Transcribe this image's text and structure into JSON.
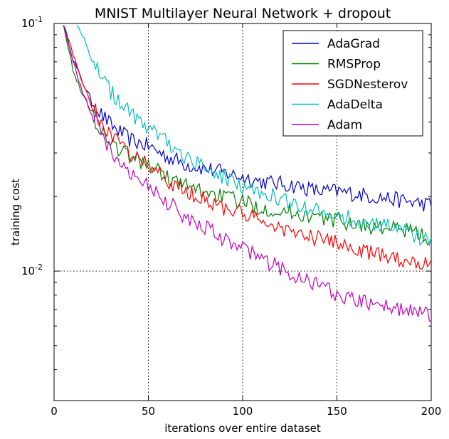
{
  "chart_data": {
    "type": "line",
    "title": "MNIST Multilayer Neural Network + dropout",
    "xlabel": "iterations over entire dataset",
    "ylabel": "training cost",
    "xlim": [
      0,
      200
    ],
    "ylim": [
      0.003,
      0.1
    ],
    "yscale": "log",
    "xticks": [
      0,
      50,
      100,
      150,
      200
    ],
    "yticks": [
      {
        "value": 0.01,
        "base": "10",
        "exp": "-2"
      },
      {
        "value": 0.1,
        "base": "10",
        "exp": "-1"
      }
    ],
    "grid": "dotted, at x = 50, 100, 150 and y = 10^-2",
    "legend_position": "upper-right",
    "series": [
      {
        "name": "AdaGrad",
        "color": "#0000cc",
        "points": [
          [
            5,
            0.1
          ],
          [
            10,
            0.072
          ],
          [
            15,
            0.058
          ],
          [
            20,
            0.049
          ],
          [
            25,
            0.043
          ],
          [
            30,
            0.039
          ],
          [
            40,
            0.034
          ],
          [
            50,
            0.032
          ],
          [
            60,
            0.029
          ],
          [
            70,
            0.027
          ],
          [
            80,
            0.026
          ],
          [
            90,
            0.025
          ],
          [
            100,
            0.024
          ],
          [
            110,
            0.023
          ],
          [
            120,
            0.0225
          ],
          [
            130,
            0.022
          ],
          [
            140,
            0.021
          ],
          [
            150,
            0.021
          ],
          [
            160,
            0.0205
          ],
          [
            170,
            0.02
          ],
          [
            180,
            0.0195
          ],
          [
            190,
            0.019
          ],
          [
            200,
            0.0185
          ]
        ]
      },
      {
        "name": "RMSProp",
        "color": "#008000",
        "points": [
          [
            5,
            0.1
          ],
          [
            10,
            0.065
          ],
          [
            15,
            0.052
          ],
          [
            20,
            0.043
          ],
          [
            25,
            0.037
          ],
          [
            30,
            0.033
          ],
          [
            40,
            0.029
          ],
          [
            50,
            0.027
          ],
          [
            60,
            0.024
          ],
          [
            70,
            0.022
          ],
          [
            80,
            0.021
          ],
          [
            90,
            0.02
          ],
          [
            100,
            0.019
          ],
          [
            110,
            0.018
          ],
          [
            120,
            0.0175
          ],
          [
            130,
            0.017
          ],
          [
            140,
            0.0165
          ],
          [
            150,
            0.016
          ],
          [
            160,
            0.0155
          ],
          [
            170,
            0.015
          ],
          [
            180,
            0.0148
          ],
          [
            190,
            0.0145
          ],
          [
            200,
            0.0135
          ]
        ]
      },
      {
        "name": "SGDNesterov",
        "color": "#ff0000",
        "points": [
          [
            5,
            0.1
          ],
          [
            10,
            0.075
          ],
          [
            15,
            0.058
          ],
          [
            20,
            0.047
          ],
          [
            25,
            0.04
          ],
          [
            30,
            0.035
          ],
          [
            40,
            0.03
          ],
          [
            50,
            0.027
          ],
          [
            60,
            0.023
          ],
          [
            70,
            0.021
          ],
          [
            80,
            0.0195
          ],
          [
            90,
            0.018
          ],
          [
            100,
            0.017
          ],
          [
            110,
            0.0158
          ],
          [
            120,
            0.015
          ],
          [
            130,
            0.014
          ],
          [
            140,
            0.0135
          ],
          [
            150,
            0.013
          ],
          [
            160,
            0.0122
          ],
          [
            170,
            0.0117
          ],
          [
            180,
            0.0113
          ],
          [
            190,
            0.011
          ],
          [
            200,
            0.0107
          ]
        ]
      },
      {
        "name": "AdaDelta",
        "color": "#00bfbf",
        "points": [
          [
            12,
            0.1
          ],
          [
            15,
            0.09
          ],
          [
            20,
            0.072
          ],
          [
            25,
            0.061
          ],
          [
            30,
            0.053
          ],
          [
            40,
            0.044
          ],
          [
            50,
            0.038
          ],
          [
            60,
            0.033
          ],
          [
            70,
            0.029
          ],
          [
            80,
            0.026
          ],
          [
            90,
            0.024
          ],
          [
            100,
            0.022
          ],
          [
            110,
            0.021
          ],
          [
            120,
            0.0195
          ],
          [
            130,
            0.0185
          ],
          [
            140,
            0.0175
          ],
          [
            150,
            0.017
          ],
          [
            160,
            0.016
          ],
          [
            170,
            0.0155
          ],
          [
            180,
            0.015
          ],
          [
            190,
            0.014
          ],
          [
            200,
            0.013
          ]
        ]
      },
      {
        "name": "Adam",
        "color": "#bf00bf",
        "points": [
          [
            5,
            0.1
          ],
          [
            10,
            0.07
          ],
          [
            15,
            0.053
          ],
          [
            20,
            0.043
          ],
          [
            25,
            0.036
          ],
          [
            30,
            0.031
          ],
          [
            40,
            0.025
          ],
          [
            50,
            0.022
          ],
          [
            60,
            0.019
          ],
          [
            70,
            0.0165
          ],
          [
            80,
            0.015
          ],
          [
            90,
            0.0135
          ],
          [
            100,
            0.0123
          ],
          [
            110,
            0.0112
          ],
          [
            120,
            0.0103
          ],
          [
            130,
            0.0094
          ],
          [
            140,
            0.0087
          ],
          [
            150,
            0.0081
          ],
          [
            160,
            0.0077
          ],
          [
            170,
            0.0073
          ],
          [
            180,
            0.0071
          ],
          [
            190,
            0.0069
          ],
          [
            200,
            0.0067
          ]
        ]
      }
    ]
  }
}
